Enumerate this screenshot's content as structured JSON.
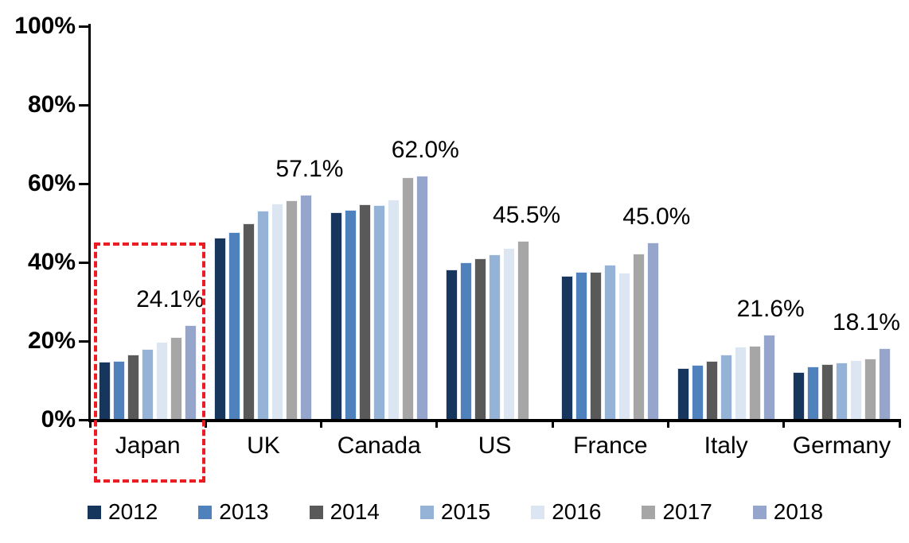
{
  "chart_data": {
    "type": "bar",
    "title": "",
    "categories": [
      "Japan",
      "UK",
      "Canada",
      "US",
      "France",
      "Italy",
      "Germany"
    ],
    "series": [
      {
        "name": "2012",
        "color": "#17365D",
        "values": [
          14.8,
          46.3,
          52.8,
          38.2,
          36.5,
          13.2,
          12.2
        ]
      },
      {
        "name": "2013",
        "color": "#4F81BD",
        "values": [
          15.0,
          47.7,
          53.3,
          40.0,
          37.5,
          13.9,
          13.6
        ]
      },
      {
        "name": "2014",
        "color": "#595959",
        "values": [
          16.5,
          50.0,
          54.7,
          41.0,
          37.5,
          15.0,
          14.1
        ]
      },
      {
        "name": "2015",
        "color": "#95B3D7",
        "values": [
          18.0,
          53.2,
          54.5,
          42.0,
          39.3,
          16.6,
          14.5
        ]
      },
      {
        "name": "2016",
        "color": "#DCE6F2",
        "values": [
          19.8,
          55.0,
          56.0,
          43.6,
          37.3,
          18.6,
          15.2
        ]
      },
      {
        "name": "2017",
        "color": "#A6A6A6",
        "values": [
          21.0,
          55.7,
          61.7,
          45.5,
          42.3,
          18.8,
          15.6
        ]
      },
      {
        "name": "2018",
        "color": "#96A5CB",
        "values": [
          24.1,
          57.1,
          62.0,
          null,
          45.0,
          21.6,
          18.1
        ]
      }
    ],
    "data_labels": [
      "24.1%",
      "57.1%",
      "62.0%",
      "45.5%",
      "45.0%",
      "21.6%",
      "18.1%"
    ],
    "y_ticks": [
      "0%",
      "20%",
      "40%",
      "60%",
      "80%",
      "100%"
    ],
    "ylim": [
      0,
      100
    ],
    "grid": false,
    "legend_position": "bottom",
    "legend_entries": [
      "2012",
      "2013",
      "2014",
      "2015",
      "2016",
      "2017",
      "2018"
    ],
    "annotations": {
      "highlight_category": "Japan",
      "highlight_style": "red-dashed-box",
      "highlight_color": "#ED1C24"
    },
    "axis_color": "#000000"
  }
}
